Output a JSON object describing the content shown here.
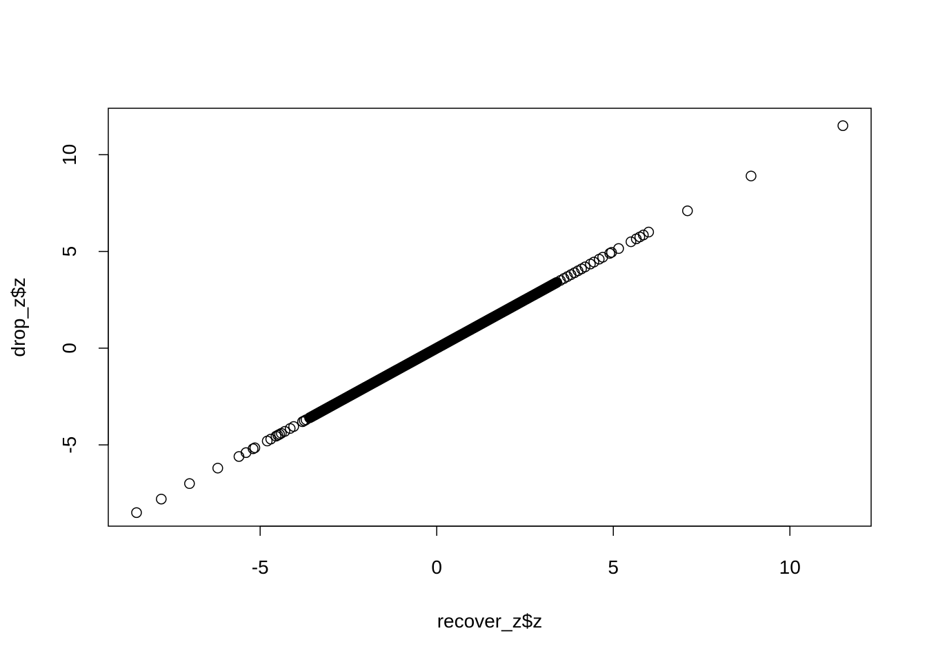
{
  "chart_data": {
    "type": "scatter",
    "xlabel": "recover_z$z",
    "ylabel": "drop_z$z",
    "xlim": [
      -9.3,
      12.3
    ],
    "ylim": [
      -9.2,
      12.4
    ],
    "x_ticks": [
      -5,
      0,
      5,
      10
    ],
    "y_ticks": [
      -5,
      0,
      5,
      10
    ],
    "x_tick_labels": [
      "-5",
      "0",
      "5",
      "10"
    ],
    "y_tick_labels": [
      "-5",
      "0",
      "5",
      "10"
    ],
    "grid": false,
    "legend": "none",
    "point_style": "open-circle",
    "colors": {
      "points": "#000000",
      "axes": "#000000",
      "background": "#ffffff"
    },
    "dense_segment": {
      "from": -3.6,
      "to": 3.4,
      "step": 0.02,
      "relation": "y equals x"
    },
    "points": [
      [
        -8.5,
        -8.5
      ],
      [
        -7.8,
        -7.8
      ],
      [
        -7.0,
        -7.0
      ],
      [
        -6.2,
        -6.2
      ],
      [
        -5.6,
        -5.6
      ],
      [
        -5.4,
        -5.4
      ],
      [
        -5.2,
        -5.2
      ],
      [
        -5.15,
        -5.15
      ],
      [
        -4.8,
        -4.8
      ],
      [
        -4.7,
        -4.7
      ],
      [
        -4.55,
        -4.55
      ],
      [
        -4.5,
        -4.5
      ],
      [
        -4.45,
        -4.45
      ],
      [
        -4.4,
        -4.4
      ],
      [
        -4.3,
        -4.3
      ],
      [
        -4.15,
        -4.15
      ],
      [
        -4.05,
        -4.05
      ],
      [
        -3.8,
        -3.8
      ],
      [
        -3.75,
        -3.75
      ],
      [
        -3.7,
        -3.7
      ],
      [
        3.5,
        3.5
      ],
      [
        3.6,
        3.6
      ],
      [
        3.7,
        3.7
      ],
      [
        3.8,
        3.8
      ],
      [
        3.9,
        3.9
      ],
      [
        4.0,
        4.0
      ],
      [
        4.1,
        4.1
      ],
      [
        4.2,
        4.2
      ],
      [
        4.35,
        4.35
      ],
      [
        4.45,
        4.45
      ],
      [
        4.6,
        4.6
      ],
      [
        4.7,
        4.7
      ],
      [
        4.9,
        4.9
      ],
      [
        4.95,
        4.95
      ],
      [
        5.15,
        5.15
      ],
      [
        5.5,
        5.5
      ],
      [
        5.65,
        5.65
      ],
      [
        5.75,
        5.75
      ],
      [
        5.85,
        5.85
      ],
      [
        6.0,
        6.0
      ],
      [
        7.1,
        7.1
      ],
      [
        8.9,
        8.9
      ],
      [
        11.5,
        11.5
      ]
    ]
  }
}
